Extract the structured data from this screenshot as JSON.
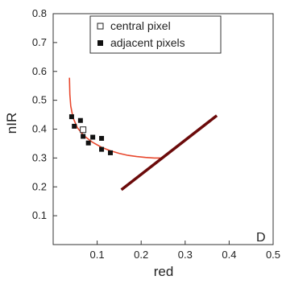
{
  "chart_data": {
    "type": "scatter",
    "panel_label": "D",
    "xlabel": "red",
    "ylabel": "nIR",
    "xlim": [
      0,
      0.5
    ],
    "ylim": [
      0,
      0.8
    ],
    "x_ticks": [
      "0.1",
      "0.2",
      "0.3",
      "0.4",
      "0.5"
    ],
    "y_ticks": [
      "0.1",
      "0.2",
      "0.3",
      "0.4",
      "0.5",
      "0.6",
      "0.7",
      "0.8"
    ],
    "x_tick_values": [
      0.1,
      0.2,
      0.3,
      0.4,
      0.5
    ],
    "y_tick_values": [
      0.1,
      0.2,
      0.3,
      0.4,
      0.5,
      0.6,
      0.7,
      0.8
    ],
    "grid": false,
    "legend_position": "top-center",
    "legend": [
      "central pixel",
      "adjacent pixels"
    ],
    "series": [
      {
        "name": "central pixel",
        "marker": "open-square",
        "points": [
          [
            0.068,
            0.398
          ]
        ]
      },
      {
        "name": "adjacent pixels",
        "marker": "filled-square",
        "points": [
          [
            0.042,
            0.443
          ],
          [
            0.048,
            0.41
          ],
          [
            0.062,
            0.43
          ],
          [
            0.068,
            0.375
          ],
          [
            0.08,
            0.352
          ],
          [
            0.09,
            0.372
          ],
          [
            0.11,
            0.368
          ],
          [
            0.11,
            0.33
          ],
          [
            0.13,
            0.318
          ]
        ]
      }
    ],
    "curves": [
      {
        "label": "",
        "color": "#e8482e",
        "points": [
          [
            0.037,
            0.578
          ],
          [
            0.038,
            0.52
          ],
          [
            0.04,
            0.48
          ],
          [
            0.045,
            0.44
          ],
          [
            0.055,
            0.405
          ],
          [
            0.07,
            0.377
          ],
          [
            0.09,
            0.354
          ],
          [
            0.11,
            0.337
          ],
          [
            0.13,
            0.325
          ],
          [
            0.15,
            0.316
          ],
          [
            0.17,
            0.309
          ],
          [
            0.19,
            0.305
          ],
          [
            0.21,
            0.302
          ],
          [
            0.23,
            0.3
          ],
          [
            0.245,
            0.3
          ]
        ]
      }
    ],
    "lines": [
      {
        "label": "",
        "color": "#6b0a0a",
        "points": [
          [
            0.155,
            0.19
          ],
          [
            0.372,
            0.447
          ]
        ]
      }
    ]
  }
}
